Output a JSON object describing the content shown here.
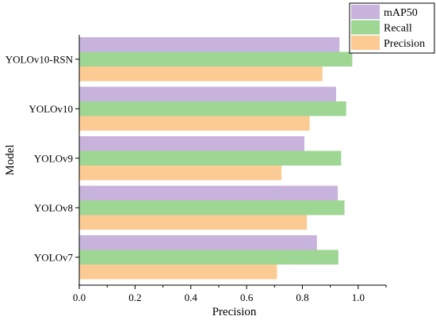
{
  "chart_data": {
    "type": "bar",
    "orientation": "horizontal",
    "xlabel": "Precision",
    "ylabel": "Model",
    "xlim": [
      0.0,
      1.1
    ],
    "xticks": [
      0.0,
      0.2,
      0.4,
      0.6,
      0.8,
      1.0
    ],
    "xtick_labels": [
      "0.0",
      "0.2",
      "0.4",
      "0.6",
      "0.8",
      "1.0"
    ],
    "categories": [
      "YOLOv10-RSN",
      "YOLOv10",
      "YOLOv9",
      "YOLOv8",
      "YOLOv7"
    ],
    "series": [
      {
        "name": "mAP50",
        "color": "#c7b3dc",
        "values": [
          0.933,
          0.921,
          0.807,
          0.927,
          0.852
        ]
      },
      {
        "name": "Recall",
        "color": "#9ed694",
        "values": [
          0.979,
          0.957,
          0.939,
          0.951,
          0.929
        ]
      },
      {
        "name": "Precision",
        "color": "#fccb94",
        "values": [
          0.872,
          0.826,
          0.725,
          0.816,
          0.709
        ]
      }
    ],
    "legend_position": "top-right",
    "grid": false
  }
}
